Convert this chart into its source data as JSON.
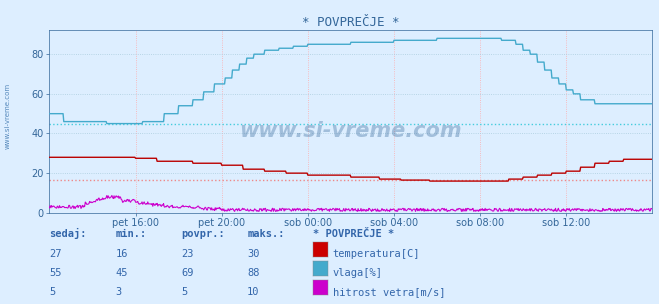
{
  "title": "* POVPREČJE *",
  "bg_color": "#ddeeff",
  "plot_bg_color": "#ddeeff",
  "xlim": [
    0,
    840
  ],
  "ylim": [
    0,
    92
  ],
  "yticks": [
    0,
    20,
    40,
    60,
    80
  ],
  "xtick_labels": [
    "pet 16:00",
    "pet 20:00",
    "sob 00:00",
    "sob 04:00",
    "sob 08:00",
    "sob 12:00"
  ],
  "xtick_positions": [
    120,
    240,
    360,
    480,
    600,
    720
  ],
  "watermark": "www.si-vreme.com",
  "temp_avg_line": 16.5,
  "vlaga_avg_line": 45,
  "temp_color": "#bb0000",
  "vlaga_color": "#44aacc",
  "wind_color": "#cc00cc",
  "temp_avg_color": "#ee8888",
  "vlaga_avg_color": "#44ccdd",
  "vgrid_color": "#ffaaaa",
  "hgrid_color": "#aaccdd",
  "title_color": "#336699",
  "axis_color": "#336699",
  "table_header_color": "#3366aa",
  "table_value_color": "#3366aa",
  "table_headers": [
    "sedaj:",
    "min.:",
    "povpr.:",
    "maks.:"
  ],
  "legend_title": "* POVPREČJE *",
  "legend_items": [
    {
      "label": "temperatura[C]",
      "color": "#cc0000"
    },
    {
      "label": "vlaga[%]",
      "color": "#44aacc"
    },
    {
      "label": "hitrost vetra[m/s]",
      "color": "#cc00cc"
    }
  ],
  "table_data": [
    [
      27,
      16,
      23,
      30
    ],
    [
      55,
      45,
      69,
      88
    ],
    [
      5,
      3,
      5,
      10
    ]
  ]
}
